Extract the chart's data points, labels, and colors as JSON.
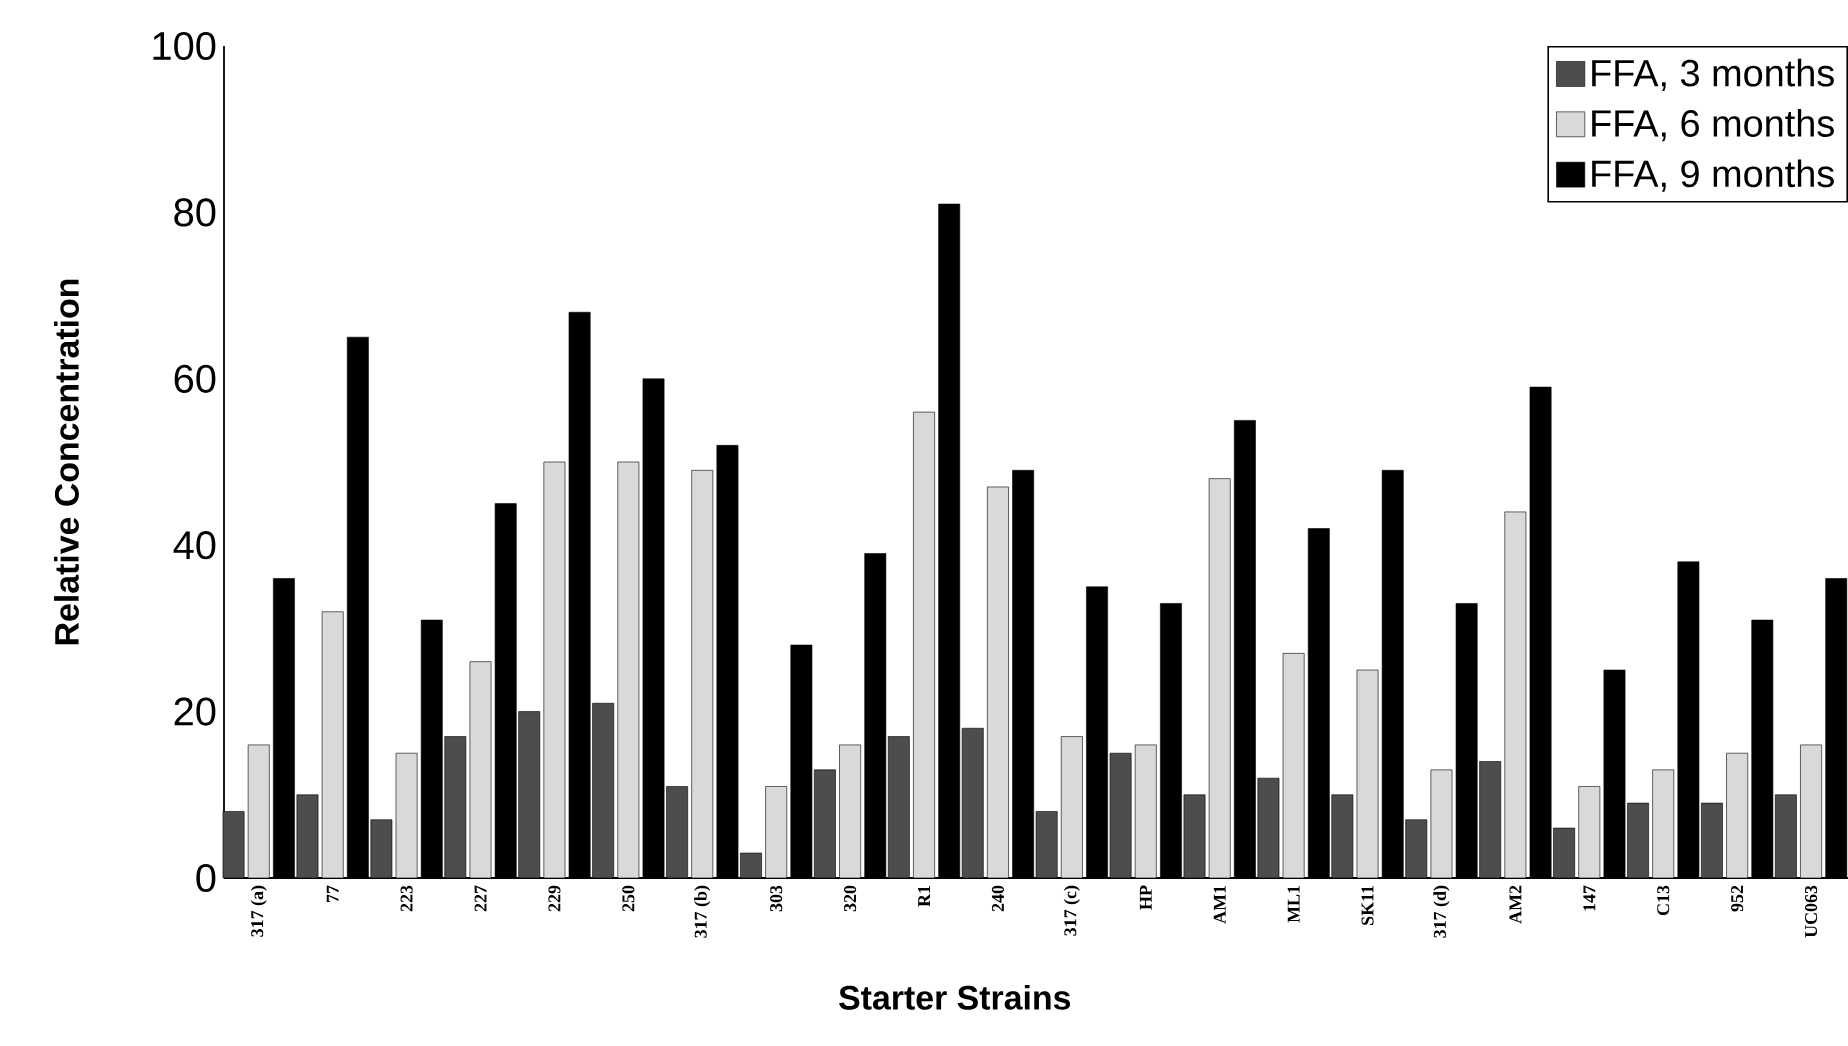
{
  "chart_data": {
    "type": "bar",
    "xlabel": "Starter Strains",
    "ylabel": "Relative Concentration",
    "categories": [
      "317 (a)",
      "77",
      "223",
      "227",
      "229",
      "250",
      "317 (b)",
      "303",
      "320",
      "R1",
      "240",
      "317 (c)",
      "HP",
      "AM1",
      "ML1",
      "SK11",
      "317 (d)",
      "AM2",
      "147",
      "C13",
      "952",
      "UC063"
    ],
    "series": [
      {
        "name": "FFA, 3 months",
        "color": "#4d4d4d",
        "values": [
          8,
          10,
          7,
          17,
          20,
          21,
          11,
          3,
          13,
          17,
          18,
          8,
          15,
          10,
          12,
          10,
          7,
          14,
          6,
          9,
          9,
          10
        ]
      },
      {
        "name": "FFA, 6 months",
        "color": "#d9d9d9",
        "values": [
          16,
          32,
          15,
          26,
          50,
          50,
          49,
          11,
          16,
          56,
          47,
          17,
          16,
          48,
          27,
          25,
          13,
          44,
          11,
          13,
          15,
          16
        ]
      },
      {
        "name": "FFA, 9 months",
        "color": "#000000",
        "values": [
          36,
          65,
          31,
          45,
          68,
          60,
          52,
          28,
          39,
          81,
          49,
          35,
          33,
          55,
          42,
          49,
          33,
          59,
          25,
          38,
          31,
          36
        ]
      }
    ],
    "ylim": [
      0,
      100
    ],
    "yticks": [
      0,
      20,
      40,
      60,
      80,
      100
    ],
    "grid": false,
    "legend": "top right"
  }
}
